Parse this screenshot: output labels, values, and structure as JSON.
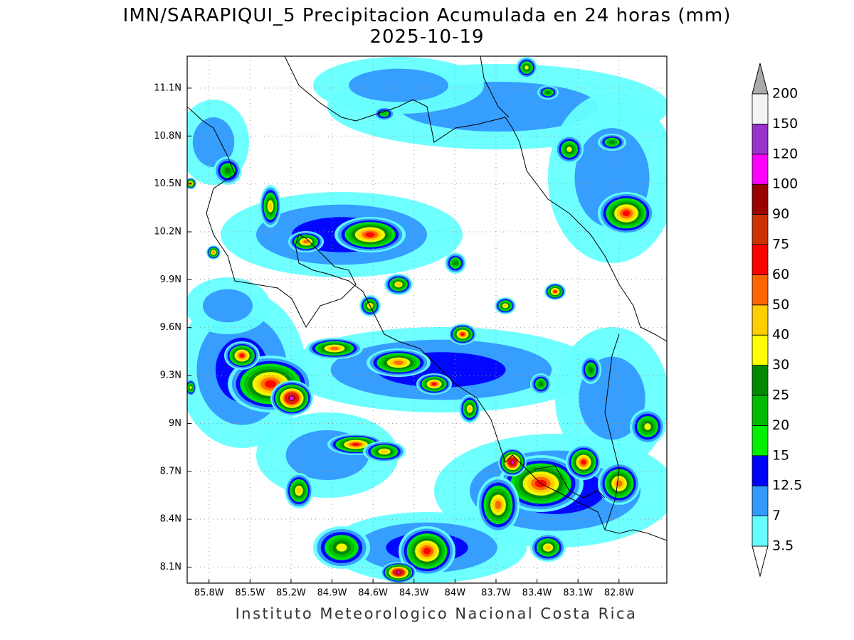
{
  "title": "IMN/SARAPIQUI_5 Precipitacion Acumulada en 24 horas (mm)",
  "subtitle": "2025-10-19",
  "map": {
    "xlim": [
      -85.96,
      -82.45
    ],
    "ylim": [
      8.0,
      11.3
    ],
    "xticks": [
      {
        "value": -85.8,
        "label": "85.8W"
      },
      {
        "value": -85.5,
        "label": "85.5W"
      },
      {
        "value": -85.2,
        "label": "85.2W"
      },
      {
        "value": -84.9,
        "label": "84.9W"
      },
      {
        "value": -84.6,
        "label": "84.6W"
      },
      {
        "value": -84.3,
        "label": "84.3W"
      },
      {
        "value": -84.0,
        "label": "84W"
      },
      {
        "value": -83.7,
        "label": "83.7W"
      },
      {
        "value": -83.4,
        "label": "83.4W"
      },
      {
        "value": -83.1,
        "label": "83.1W"
      },
      {
        "value": -82.8,
        "label": "82.8W"
      }
    ],
    "yticks": [
      {
        "value": 8.1,
        "label": "8.1N"
      },
      {
        "value": 8.4,
        "label": "8.4N"
      },
      {
        "value": 8.7,
        "label": "8.7N"
      },
      {
        "value": 9.0,
        "label": "9N"
      },
      {
        "value": 9.3,
        "label": "9.3N"
      },
      {
        "value": 9.6,
        "label": "9.6N"
      },
      {
        "value": 9.9,
        "label": "9.9N"
      },
      {
        "value": 10.2,
        "label": "10.2N"
      },
      {
        "value": 10.5,
        "label": "10.5N"
      },
      {
        "value": 10.8,
        "label": "10.8N"
      },
      {
        "value": 11.1,
        "label": "11.1N"
      }
    ],
    "grid": true
  },
  "colorbar": {
    "levels": [
      3.5,
      7,
      12.5,
      15,
      20,
      25,
      30,
      40,
      50,
      60,
      75,
      90,
      100,
      120,
      150,
      200
    ],
    "colors": [
      "#66ffff",
      "#3399ff",
      "#0000ff",
      "#00ee00",
      "#00bb00",
      "#008800",
      "#ffff00",
      "#ffcc00",
      "#ff6600",
      "#ff0000",
      "#cc3300",
      "#990000",
      "#ff00ff",
      "#9933cc",
      "#f4f4f4"
    ],
    "under_color": "#ffffff",
    "over_color": "#aaaaaa"
  },
  "footer": "Instituto Meteorologico Nacional Costa Rica"
}
